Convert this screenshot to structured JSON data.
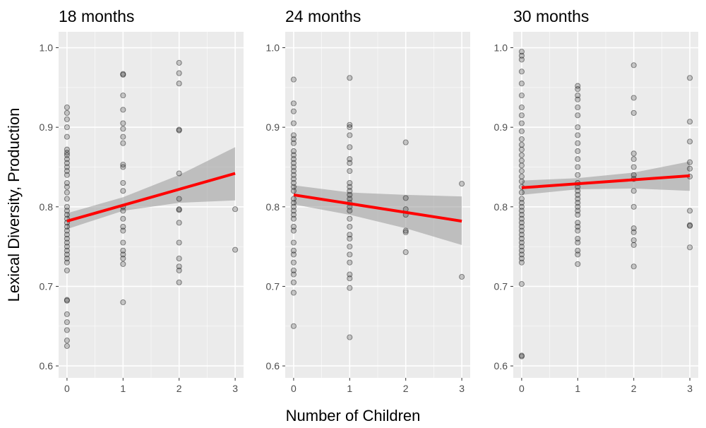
{
  "chart_data": {
    "type": "scatter",
    "ylabel": "Lexical Diversity, Production",
    "xlabel": "Number of Children",
    "x_ticks": [
      0,
      1,
      2,
      3
    ],
    "y_ticks": [
      0.6,
      0.7,
      0.8,
      0.9,
      1.0
    ],
    "y_tick_labels": [
      "0.6",
      "0.7",
      "0.8",
      "0.9",
      "1.0"
    ],
    "xlim": [
      -0.15,
      3.15
    ],
    "ylim": [
      0.585,
      1.02
    ],
    "colors": {
      "panel_bg": "#ebebeb",
      "grid": "#ffffff",
      "points": "#000000",
      "fit": "#ff0000",
      "ribbon": "#999999"
    },
    "panels": [
      {
        "title": "18 months",
        "fit": {
          "x": [
            0,
            3
          ],
          "y": [
            0.782,
            0.842
          ]
        },
        "ribbon": {
          "x": [
            0,
            1,
            2,
            3
          ],
          "lower": [
            0.772,
            0.795,
            0.805,
            0.808
          ],
          "upper": [
            0.792,
            0.812,
            0.84,
            0.875
          ]
        },
        "points": [
          {
            "x": 0,
            "values": [
              0.925,
              0.918,
              0.91,
              0.9,
              0.888,
              0.872,
              0.868,
              0.865,
              0.86,
              0.855,
              0.85,
              0.845,
              0.84,
              0.83,
              0.825,
              0.818,
              0.81,
              0.8,
              0.795,
              0.79,
              0.785,
              0.78,
              0.775,
              0.77,
              0.765,
              0.76,
              0.755,
              0.75,
              0.745,
              0.74,
              0.735,
              0.73,
              0.72,
              0.683,
              0.682,
              0.665,
              0.655,
              0.645,
              0.632,
              0.625
            ]
          },
          {
            "x": 1,
            "values": [
              0.967,
              0.966,
              0.94,
              0.922,
              0.905,
              0.898,
              0.888,
              0.88,
              0.853,
              0.85,
              0.83,
              0.82,
              0.8,
              0.795,
              0.785,
              0.775,
              0.77,
              0.755,
              0.745,
              0.74,
              0.735,
              0.728,
              0.68
            ]
          },
          {
            "x": 2,
            "values": [
              0.981,
              0.968,
              0.955,
              0.897,
              0.896,
              0.842,
              0.81,
              0.797,
              0.796,
              0.78,
              0.755,
              0.735,
              0.725,
              0.72,
              0.705
            ]
          },
          {
            "x": 3,
            "values": [
              0.797,
              0.746
            ]
          }
        ]
      },
      {
        "title": "24 months",
        "fit": {
          "x": [
            0,
            3
          ],
          "y": [
            0.815,
            0.782
          ]
        },
        "ribbon": {
          "x": [
            0,
            1,
            2,
            3
          ],
          "lower": [
            0.803,
            0.79,
            0.773,
            0.752
          ],
          "upper": [
            0.827,
            0.818,
            0.815,
            0.813
          ]
        },
        "points": [
          {
            "x": 0,
            "values": [
              0.96,
              0.93,
              0.92,
              0.905,
              0.89,
              0.885,
              0.88,
              0.87,
              0.865,
              0.86,
              0.855,
              0.85,
              0.845,
              0.84,
              0.835,
              0.83,
              0.825,
              0.82,
              0.81,
              0.805,
              0.8,
              0.795,
              0.79,
              0.785,
              0.775,
              0.77,
              0.755,
              0.745,
              0.74,
              0.73,
              0.72,
              0.715,
              0.705,
              0.692,
              0.65
            ]
          },
          {
            "x": 1,
            "values": [
              0.962,
              0.903,
              0.9,
              0.89,
              0.875,
              0.86,
              0.855,
              0.845,
              0.83,
              0.825,
              0.82,
              0.815,
              0.81,
              0.805,
              0.8,
              0.795,
              0.785,
              0.775,
              0.765,
              0.76,
              0.75,
              0.74,
              0.73,
              0.715,
              0.71,
              0.698,
              0.636
            ]
          },
          {
            "x": 2,
            "values": [
              0.881,
              0.811,
              0.797,
              0.79,
              0.77,
              0.768,
              0.743
            ]
          },
          {
            "x": 3,
            "values": [
              0.829,
              0.712
            ]
          }
        ]
      },
      {
        "title": "30 months",
        "fit": {
          "x": [
            0,
            3
          ],
          "y": [
            0.824,
            0.839
          ]
        },
        "ribbon": {
          "x": [
            0,
            1,
            2,
            3
          ],
          "lower": [
            0.815,
            0.822,
            0.823,
            0.82
          ],
          "upper": [
            0.833,
            0.836,
            0.843,
            0.857
          ]
        },
        "points": [
          {
            "x": 0,
            "values": [
              0.995,
              0.99,
              0.985,
              0.97,
              0.955,
              0.94,
              0.925,
              0.915,
              0.905,
              0.895,
              0.885,
              0.878,
              0.872,
              0.865,
              0.858,
              0.852,
              0.845,
              0.838,
              0.832,
              0.825,
              0.818,
              0.81,
              0.805,
              0.8,
              0.795,
              0.79,
              0.785,
              0.78,
              0.775,
              0.77,
              0.765,
              0.76,
              0.755,
              0.75,
              0.745,
              0.74,
              0.735,
              0.73,
              0.703,
              0.613,
              0.612
            ]
          },
          {
            "x": 1,
            "values": [
              0.952,
              0.948,
              0.94,
              0.935,
              0.925,
              0.915,
              0.9,
              0.89,
              0.88,
              0.87,
              0.86,
              0.85,
              0.84,
              0.83,
              0.825,
              0.82,
              0.815,
              0.81,
              0.805,
              0.8,
              0.795,
              0.79,
              0.78,
              0.775,
              0.77,
              0.76,
              0.755,
              0.745,
              0.74,
              0.728
            ]
          },
          {
            "x": 2,
            "values": [
              0.978,
              0.937,
              0.918,
              0.867,
              0.86,
              0.85,
              0.84,
              0.835,
              0.82,
              0.8,
              0.773,
              0.768,
              0.758,
              0.752,
              0.725
            ]
          },
          {
            "x": 3,
            "values": [
              0.962,
              0.907,
              0.882,
              0.856,
              0.848,
              0.838,
              0.795,
              0.777,
              0.776,
              0.749
            ]
          }
        ]
      }
    ]
  }
}
